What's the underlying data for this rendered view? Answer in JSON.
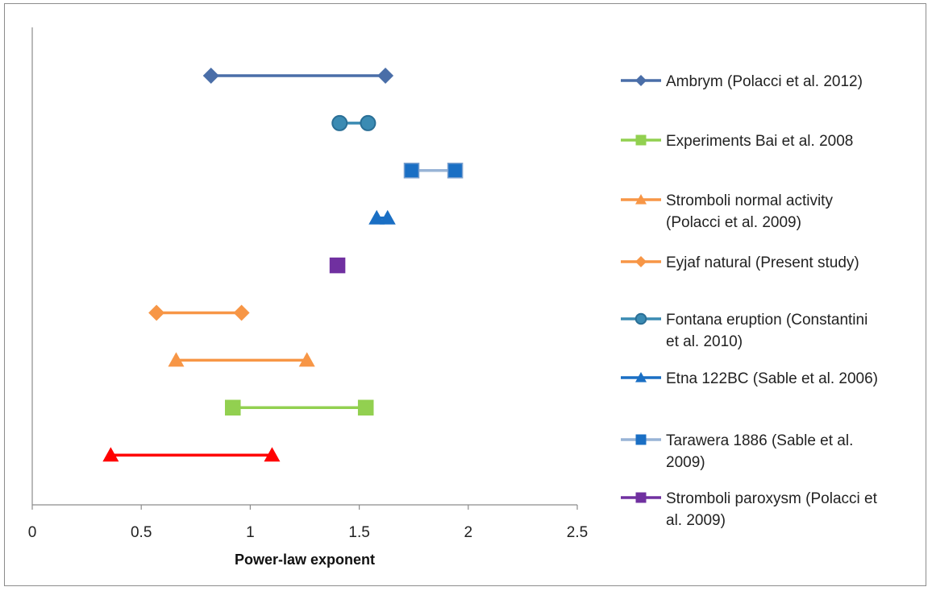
{
  "chart_data": {
    "type": "range-dot",
    "xlabel": "Power-law exponent",
    "xlim": [
      0,
      2.5
    ],
    "x_ticks": [
      "0",
      "0.5",
      "1",
      "1.5",
      "2",
      "2.5"
    ],
    "grid": false,
    "legend_position": "right",
    "series": [
      {
        "name": "Ambrym (Polacci et al. 2012)",
        "legend_lines": [
          "Ambrym (Polacci et al. 2012)"
        ],
        "marker": "diamond",
        "color": "#4a6ea8",
        "values": [
          0.82,
          1.62
        ]
      },
      {
        "name": "Fontana eruption (Constantini et al. 2010)",
        "legend_lines": [
          "Fontana eruption (Constantini",
          "et al. 2010)"
        ],
        "marker": "circle",
        "color": "#3b8bb3",
        "values": [
          1.41,
          1.54
        ]
      },
      {
        "name": "Tarawera 1886 (Sable et al. 2009)",
        "legend_lines": [
          "Tarawera 1886 (Sable et al.",
          "2009)"
        ],
        "marker": "square",
        "color": "#98b4d6",
        "marker_color": "#1a6fc4",
        "values": [
          1.74,
          1.94
        ]
      },
      {
        "name": "Etna 122BC (Sable et al. 2006)",
        "legend_lines": [
          "Etna 122BC (Sable et al. 2006)"
        ],
        "marker": "triangle",
        "color": "#1a6fc4",
        "values": [
          1.58,
          1.63
        ]
      },
      {
        "name": "Stromboli paroxysm (Polacci et al. 2009)",
        "legend_lines": [
          "Stromboli paroxysm (Polacci et",
          "al. 2009)"
        ],
        "marker": "square",
        "color": "#7030a0",
        "values": [
          1.4
        ]
      },
      {
        "name": "Eyjaf natural (Present study)",
        "legend_lines": [
          "Eyjaf natural (Present study)"
        ],
        "marker": "diamond",
        "color": "#f79646",
        "values": [
          0.57,
          0.96
        ]
      },
      {
        "name": "Stromboli normal activity (Polacci et al. 2009)",
        "legend_lines": [
          "Stromboli normal activity",
          "(Polacci et al. 2009)"
        ],
        "marker": "triangle",
        "color": "#f79646",
        "values": [
          0.66,
          1.26
        ]
      },
      {
        "name": "Experiments Bai et al. 2008",
        "legend_lines": [
          "Experiments Bai et al. 2008"
        ],
        "marker": "square",
        "color": "#92d050",
        "values": [
          0.92,
          1.53
        ]
      },
      {
        "name": "",
        "legend_lines": [],
        "marker": "triangle",
        "color": "#ff0000",
        "values": [
          0.36,
          1.1
        ]
      }
    ],
    "legend_order": [
      0,
      7,
      6,
      5,
      1,
      3,
      2,
      4
    ]
  }
}
